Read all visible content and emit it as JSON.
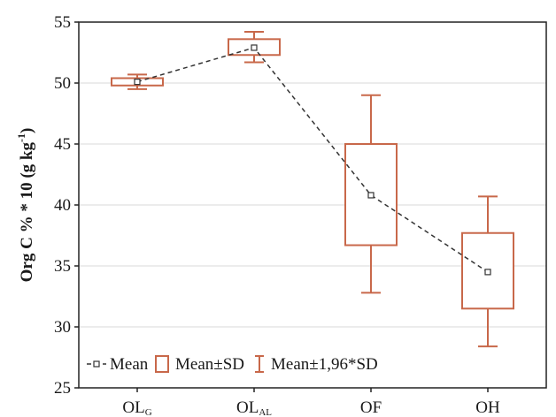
{
  "chart_data": {
    "type": "box",
    "ylabel": "Org C % * 10 (g kg-1)",
    "ylabel_parts": {
      "main": "Org C % * 10 (g kg",
      "sup": "-1",
      "end": ")"
    },
    "ylim": [
      25,
      55
    ],
    "yticks": [
      25,
      30,
      35,
      40,
      45,
      50,
      55
    ],
    "grid": true,
    "categories": [
      {
        "label": "OL",
        "sub": "G"
      },
      {
        "label": "OL",
        "sub": "AL"
      },
      {
        "label": "OF",
        "sub": ""
      },
      {
        "label": "OH",
        "sub": ""
      }
    ],
    "mean": [
      50.1,
      52.9,
      40.8,
      34.5
    ],
    "sd_low": [
      49.8,
      52.3,
      36.7,
      31.5
    ],
    "sd_high": [
      50.4,
      53.6,
      45.0,
      37.7
    ],
    "ci_low": [
      49.5,
      51.7,
      32.8,
      28.4
    ],
    "ci_high": [
      50.7,
      54.2,
      49.0,
      40.7
    ],
    "legend": {
      "position": "bottom-left",
      "items": [
        "Mean",
        "Mean±SD",
        "Mean±1,96*SD"
      ]
    },
    "colors": {
      "box": "#c8684a",
      "mean_line": "#333333",
      "grid": "#d9d9d9"
    }
  }
}
